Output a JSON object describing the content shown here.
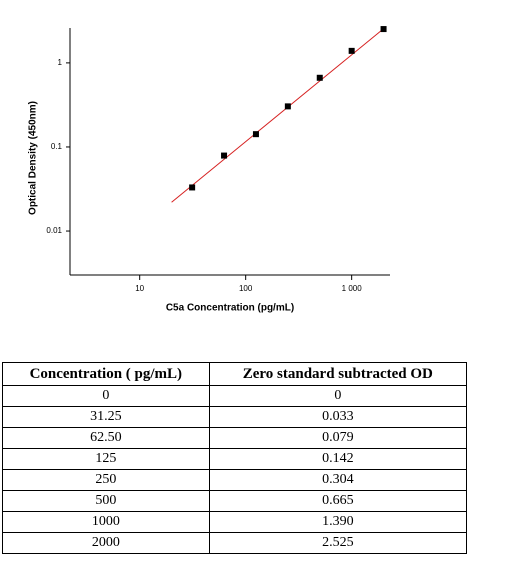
{
  "chart_data": {
    "type": "scatter",
    "xlog": true,
    "ylog": true,
    "xlabel": "C5a Concentration (pg/mL)",
    "ylabel": "Optical Density (450nm)",
    "xlim": [
      2.2,
      2300
    ],
    "ylim": [
      0.003,
      2.6
    ],
    "xticks": [
      10,
      100,
      {
        "value": 1000,
        "label": "1 000"
      }
    ],
    "yticks": [
      0.01,
      0.1,
      1
    ],
    "points": {
      "x": [
        31.25,
        62.5,
        125,
        250,
        500,
        1000,
        2000
      ],
      "y": [
        0.033,
        0.079,
        0.142,
        0.304,
        0.665,
        1.39,
        2.525
      ],
      "color": "#000000"
    },
    "fit_line": {
      "x": [
        20,
        2000
      ],
      "y": [
        0.022,
        2.55
      ],
      "color": "#d62020"
    }
  },
  "table": {
    "header": [
      "Concentration ( pg/mL)",
      "Zero standard subtracted OD"
    ],
    "rows": [
      [
        "0",
        "0"
      ],
      [
        "31.25",
        "0.033"
      ],
      [
        "62.50",
        "0.079"
      ],
      [
        "125",
        "0.142"
      ],
      [
        "250",
        "0.304"
      ],
      [
        "500",
        "0.665"
      ],
      [
        "1000",
        "1.390"
      ],
      [
        "2000",
        "2.525"
      ]
    ]
  }
}
